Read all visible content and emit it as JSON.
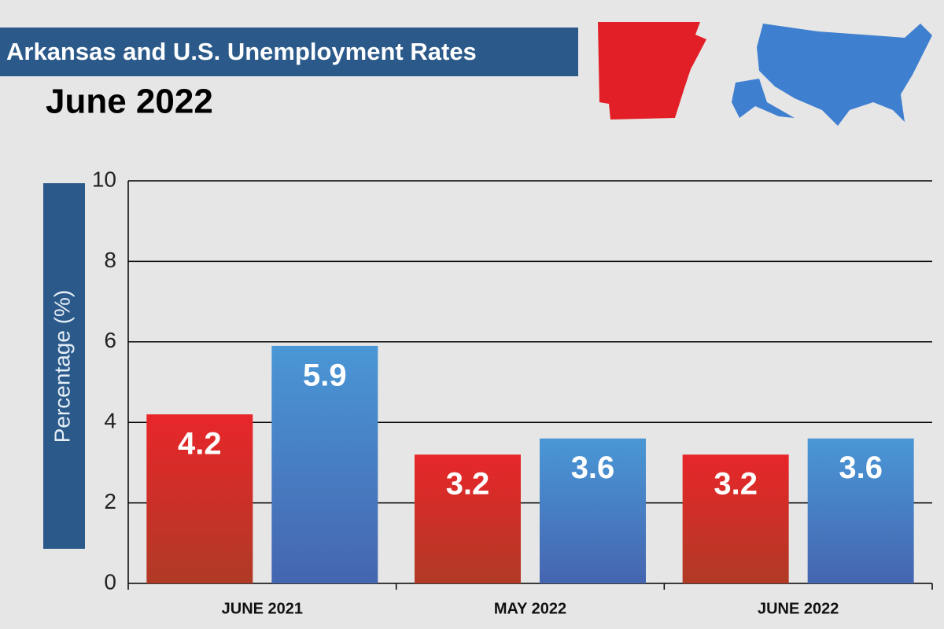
{
  "chart_data": {
    "type": "bar",
    "title": "Arkansas and U.S. Unemployment Rates",
    "subtitle": "June 2022",
    "y_label": "Percentage (%)",
    "categories": [
      "JUNE 2021",
      "MAY 2022",
      "JUNE 2022"
    ],
    "series": [
      {
        "color": "#e8262a",
        "values": [
          4.2,
          3.2,
          3.2
        ]
      },
      {
        "color": "#4a97d6",
        "values": [
          5.9,
          3.6,
          3.6
        ]
      }
    ],
    "ylim": [
      0,
      10
    ],
    "yticks": [
      0,
      2,
      4,
      6,
      8,
      10
    ],
    "grid": true
  }
}
